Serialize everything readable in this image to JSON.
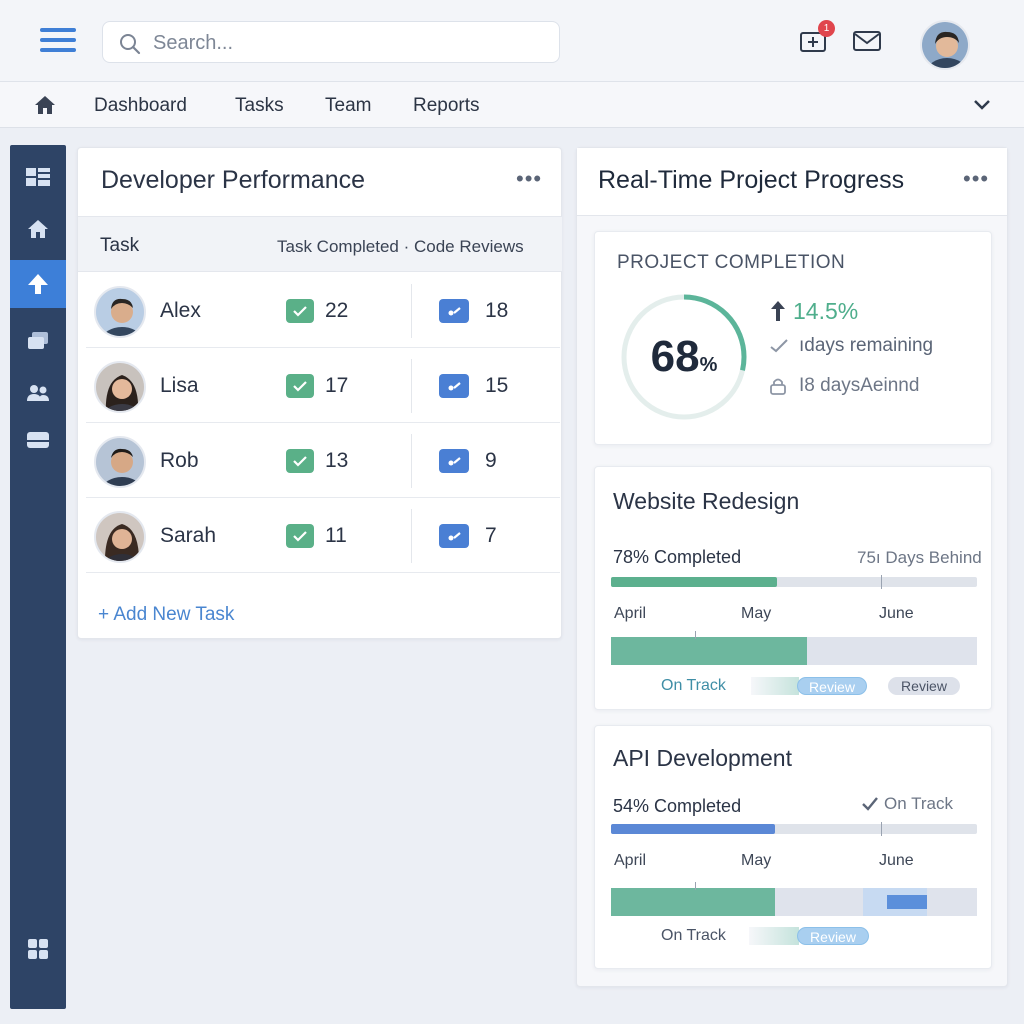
{
  "header": {
    "search_placeholder": "Search...",
    "notification_count": "1"
  },
  "nav": {
    "items": [
      {
        "label": "Dashboard"
      },
      {
        "label": "Tasks"
      },
      {
        "label": "Team"
      },
      {
        "label": "Reports"
      }
    ]
  },
  "sidebar": {
    "items": [
      {
        "icon": "dashboard-icon"
      },
      {
        "icon": "home-icon"
      },
      {
        "icon": "upload-icon",
        "active": true
      },
      {
        "icon": "messages-icon"
      },
      {
        "icon": "team-icon"
      },
      {
        "icon": "storage-icon"
      },
      {
        "icon": "apps-icon"
      }
    ]
  },
  "developer_performance": {
    "title": "Developer Performance",
    "menu": "•••",
    "col_task": "Task",
    "col_metrics": "Task Completed · Code Reviews",
    "rows": [
      {
        "name": "Alex",
        "tasks_completed": "22",
        "code_reviews": "18"
      },
      {
        "name": "Lisa",
        "tasks_completed": "17",
        "code_reviews": "15"
      },
      {
        "name": "Rob",
        "tasks_completed": "13",
        "code_reviews": "9"
      },
      {
        "name": "Sarah",
        "tasks_completed": "11",
        "code_reviews": "7"
      }
    ],
    "add_task": "+ Add New Task"
  },
  "project_progress": {
    "title": "Real-Time Project Progress",
    "menu": "•••",
    "completion": {
      "label": "PROJECT COMPLETION",
      "value": "68",
      "unit": "%",
      "percent": 68,
      "change": "14.5%",
      "days_remaining": "ıdays remaining",
      "days_behind": "I8 daysAeinnd"
    },
    "projects": [
      {
        "title": "Website Redesign",
        "completed_text": "78% Completed",
        "percent": 78,
        "note": "75ı Days Behind",
        "months": [
          "April",
          "May",
          "June"
        ],
        "status": "On Track",
        "pill1": "Review",
        "pill2": "Review"
      },
      {
        "title": "API Development",
        "completed_text": "54% Completed",
        "percent": 54,
        "note": "On Track",
        "months": [
          "April",
          "May",
          "June"
        ],
        "status": "On Track",
        "pill1": "Review"
      }
    ]
  },
  "colors": {
    "accent_blue": "#3d7fd8",
    "accent_green": "#5ab088",
    "sidebar": "#2e4466"
  }
}
